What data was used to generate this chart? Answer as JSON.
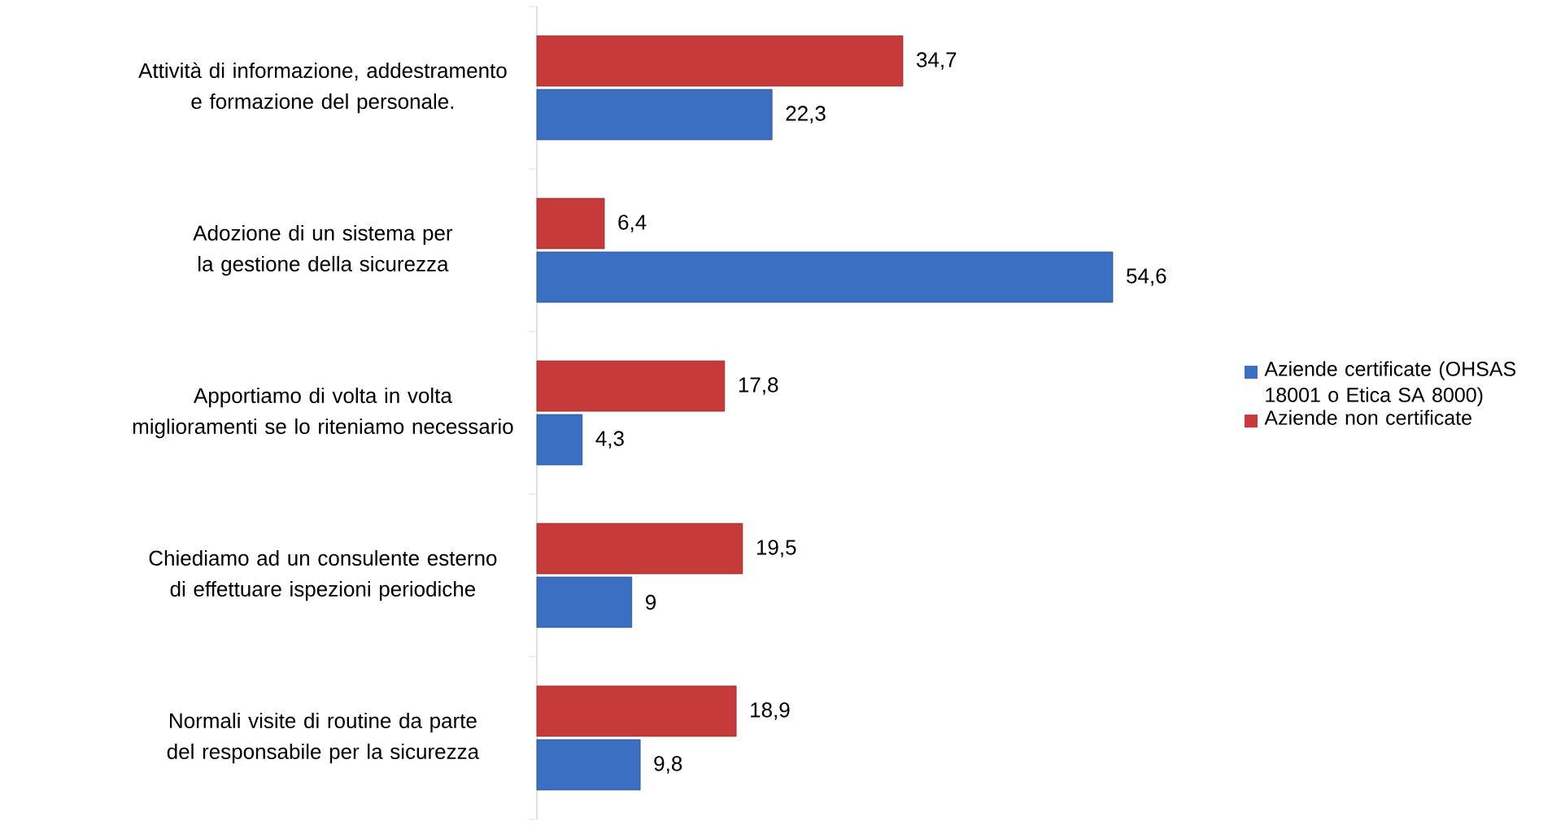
{
  "chart_data": {
    "type": "bar",
    "orientation": "horizontal",
    "legend": "right",
    "categories": [
      "Attività di informazione, addestramento e formazione del personale.",
      "Adozione di un sistema per la gestione della sicurezza",
      "Apportiamo di volta in volta miglioramenti se lo riteniamo necessario",
      "Chiediamo ad un consulente esterno di effettuare ispezioni periodiche",
      "Normali visite di routine da parte del responsabile per la sicurezza"
    ],
    "series": [
      {
        "name": "Aziende certificate (OHSAS 18001 o Etica SA 8000)",
        "color": "#3a6fc2",
        "values": [
          22.3,
          54.6,
          4.3,
          9,
          9.8
        ],
        "value_labels": [
          "22,3",
          "54,6",
          "4,3",
          "9",
          "9,8"
        ]
      },
      {
        "name": "Aziende non certificate",
        "color": "#c73a3a",
        "values": [
          34.7,
          6.4,
          17.8,
          19.5,
          18.9
        ],
        "value_labels": [
          "34,7",
          "6,4",
          "17,8",
          "19,5",
          "18,9"
        ]
      }
    ]
  }
}
